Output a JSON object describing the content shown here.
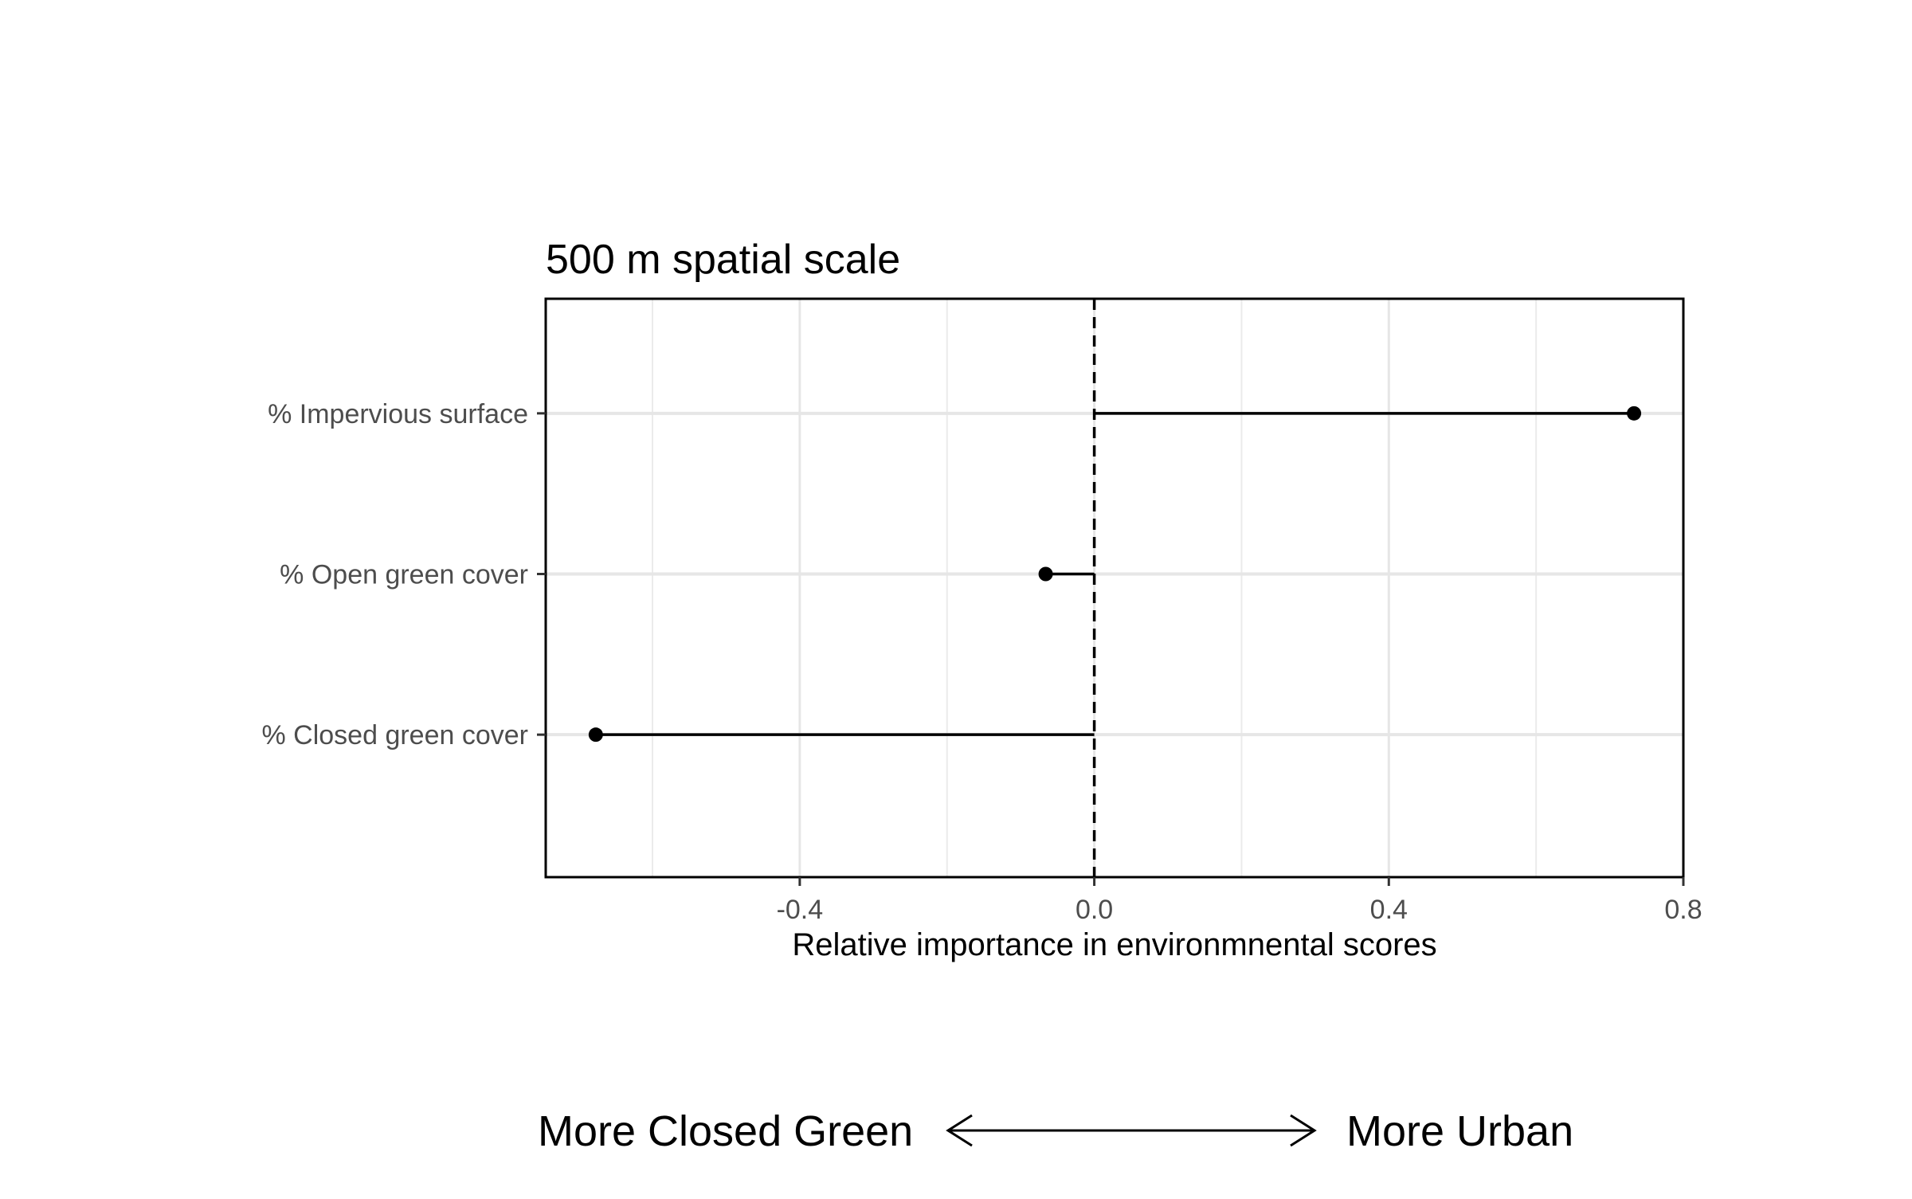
{
  "chart_data": {
    "type": "lollipop",
    "title": "500 m spatial scale",
    "xlabel": "Relative importance in environmnental scores",
    "ylabel": "",
    "xlim": [
      -0.745,
      0.8
    ],
    "x_ticks": [
      -0.4,
      0.0,
      0.4,
      0.8
    ],
    "x_tick_labels": [
      "-0.4",
      "0.0",
      "0.4",
      "0.8"
    ],
    "minor_gridlines_x": [
      -0.6,
      -0.2,
      0.2,
      0.6
    ],
    "reference_line": {
      "x": 0,
      "style": "dashed"
    },
    "categories": [
      "% Impervious surface",
      "% Open green cover",
      "% Closed green cover"
    ],
    "values": [
      0.733,
      -0.066,
      -0.677
    ],
    "grid": true,
    "legend": "none",
    "point_color": "#000000",
    "line_color": "#000000"
  },
  "footer": {
    "left_label": "More Closed Green",
    "right_label": "More Urban",
    "arrow": "double-headed-arrow"
  }
}
